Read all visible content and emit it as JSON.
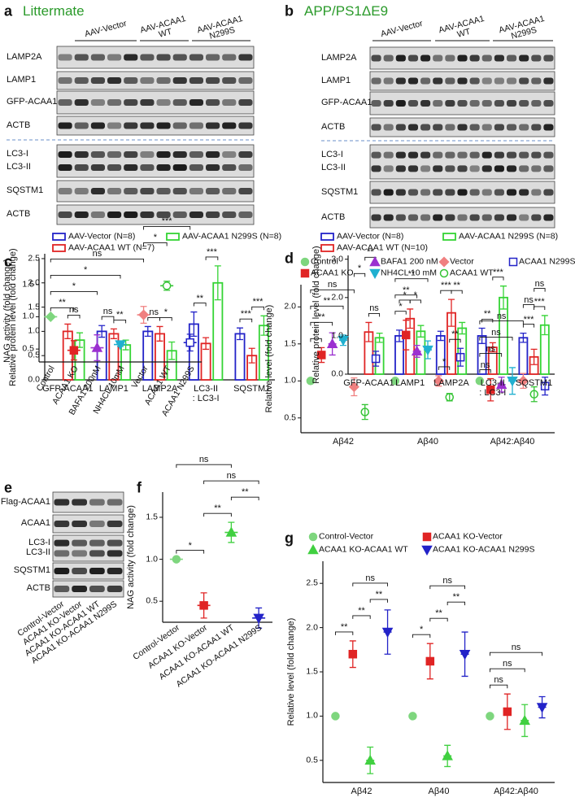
{
  "blots": [
    {
      "letter": "a",
      "title": "Littermate",
      "groups": [
        "AAV-Vector",
        "AAV-ACAA1\nWT",
        "AAV-ACAA1\nN299S"
      ],
      "rows": [
        [
          "LAMP2A"
        ],
        [
          "LAMP1"
        ],
        [
          "GFP-ACAA1"
        ],
        [
          "ACTB"
        ],
        [
          "LC3-I",
          "LC3-II"
        ],
        [
          "SQSTM1"
        ],
        [
          "ACTB"
        ]
      ]
    },
    {
      "letter": "b",
      "title": "APP/PS1ΔE9",
      "groups": [
        "AAV-Vector",
        "AAV-ACAA1\nWT",
        "AAV-ACAA1\nN299S"
      ],
      "rows": [
        [
          "LAMP2A"
        ],
        [
          "LAMP1"
        ],
        [
          "GFP-ACAA1"
        ],
        [
          "ACTB"
        ],
        [
          "LC3-I",
          "LC3-II"
        ],
        [
          "SQSTM1"
        ],
        [
          "ACTB"
        ]
      ]
    },
    {
      "letter": "e",
      "rows": [
        [
          "Flag-ACAA1"
        ],
        [
          "ACAA1"
        ],
        [
          "LC3-I",
          "LC3-II"
        ],
        [
          "SQSTM1"
        ],
        [
          "ACTB"
        ]
      ],
      "lanes": [
        "Control-Vector",
        "ACAA1 KO-Vector",
        "ACAA1 KO-ACAA1 WT",
        "ACAA1 KO-ACAA1 N299S"
      ]
    }
  ],
  "chart_data": [
    {
      "type": "bar",
      "ylabel": "Relative protein level (fold change)",
      "categories": [
        "GFP-ACAA1",
        "LAMP1",
        "LAMP2A",
        "LC3-II\n: LC3-I",
        "SQSTM1"
      ],
      "series": [
        {
          "name": "AAV-Vector (N=8)",
          "color": "#2323c8",
          "values": [
            null,
            1.0,
            1.0,
            1.15,
            0.95
          ],
          "errors": [
            null,
            0.12,
            0.1,
            0.25,
            0.12
          ],
          "significance": [
            null,
            "ns",
            "ns",
            "**",
            "***"
          ]
        },
        {
          "name": "AAV-ACAA1 WT (N=7)",
          "color": "#e02424",
          "values": [
            1.0,
            0.95,
            0.95,
            0.75,
            0.5
          ],
          "errors": [
            0.15,
            0.1,
            0.15,
            0.12,
            0.15
          ]
        },
        {
          "name": "AAV-ACAA1 N299S (N=8)",
          "color": "#35d435",
          "values": [
            0.82,
            0.72,
            0.6,
            2.0,
            1.12
          ],
          "errors": [
            0.15,
            0.1,
            0.18,
            0.35,
            0.2
          ],
          "significance": [
            "ns",
            "**",
            "*",
            "***",
            "***"
          ]
        }
      ],
      "ylim": [
        0,
        2.6
      ],
      "yticks": [
        {
          "value": 0,
          "label": "0.0"
        },
        0.5,
        {
          "value": 1,
          "label": "1.0"
        },
        1.5,
        {
          "value": 2,
          "label": "2.0"
        },
        2.5
      ]
    },
    {
      "type": "bar",
      "ylabel": "Relative protein level (fold change)",
      "categories": [
        "GFP-ACAA1",
        "LAMP1",
        "LAMP2A",
        "LC3-II\n: LC3-I",
        "SQSTM1"
      ],
      "series": [
        {
          "name": "AAV-Vector (N=8)",
          "color": "#2323c8",
          "values": [
            null,
            1.0,
            1.0,
            1.0,
            0.95
          ],
          "errors": [
            null,
            0.15,
            0.12,
            0.2,
            0.12
          ],
          "significance": [
            null,
            "*",
            "***",
            "**",
            "***"
          ]
        },
        {
          "name": "AAV-ACAA1 WT (N=10)",
          "color": "#e02424",
          "values": [
            1.1,
            1.45,
            1.6,
            0.7,
            0.45
          ],
          "errors": [
            0.25,
            0.25,
            0.35,
            0.12,
            0.2
          ]
        },
        {
          "name": "AAV-ACAA1 N299S (N=8)",
          "color": "#35d435",
          "values": [
            0.95,
            1.12,
            1.2,
            2.0,
            1.28
          ],
          "errors": [
            0.12,
            0.15,
            0.15,
            0.3,
            0.25
          ],
          "significance": [
            "ns",
            "*",
            "**",
            "***",
            "***"
          ]
        }
      ],
      "ylim": [
        0,
        3.1
      ],
      "yticks": [
        {
          "value": 0,
          "label": "0.0"
        },
        {
          "value": 1,
          "label": "1.0"
        },
        {
          "value": 2,
          "label": "2.0"
        },
        {
          "value": 3,
          "label": "3.0"
        }
      ]
    },
    {
      "type": "dot",
      "letter": "c",
      "ylabel": "NAG activity (fold change)",
      "categories": [
        "Control",
        "ACAA1 KO",
        "BAFA1 200nM",
        "NH4CL 10mM",
        "Vector",
        "ACAA1 WT",
        "ACAA1 N299S"
      ],
      "values": [
        1.0,
        0.48,
        0.52,
        0.57,
        1.03,
        1.48,
        0.6
      ],
      "errors": [
        0,
        0.15,
        0.2,
        0.03,
        0.13,
        0.07,
        0.13
      ],
      "colors": [
        "#7ed67e",
        "#e02424",
        "#9b30d0",
        "#20b0d0",
        "#f08080",
        "#35c435",
        "#2323c8"
      ],
      "markers": [
        "diamond",
        "square",
        "triangle",
        "triangle-down",
        "diamond",
        "circle-open",
        "square-open"
      ],
      "comparisons": [
        {
          "from": 0,
          "to": 1,
          "label": "**"
        },
        {
          "from": 0,
          "to": 2,
          "label": "*"
        },
        {
          "from": 0,
          "to": 3,
          "label": "*"
        },
        {
          "from": 0,
          "to": 4,
          "label": "ns"
        },
        {
          "from": 4,
          "to": 5,
          "label": "*"
        },
        {
          "from": 4,
          "to": 6,
          "label": "***"
        }
      ],
      "ylim": [
        0.3,
        1.9
      ],
      "yticks": [
        0.5,
        {
          "value": 1,
          "label": "1.0"
        },
        1.5
      ]
    },
    {
      "type": "grouped-dot",
      "letter": "d",
      "ylabel": "Relative level (fold change)",
      "categories": [
        "Aβ42",
        "Aβ40",
        "Aβ42:Aβ40"
      ],
      "series": [
        {
          "name": "Control",
          "color": "#7ed67e",
          "marker": "circle",
          "values": [
            1.0,
            1.0,
            1.0
          ],
          "errors": [
            0,
            0,
            0
          ]
        },
        {
          "name": "ACAA1 KO",
          "color": "#e02424",
          "marker": "square",
          "values": [
            1.35,
            1.62,
            0.88
          ],
          "errors": [
            0.1,
            0.2,
            0.15
          ]
        },
        {
          "name": "BAFA1 200 nM",
          "color": "#9b30d0",
          "marker": "triangle",
          "values": [
            1.5,
            1.4,
            0.95
          ],
          "errors": [
            0.15,
            0.08,
            0.1
          ]
        },
        {
          "name": "NH4CL 10 mM",
          "color": "#20b0d0",
          "marker": "triangle-down",
          "values": [
            1.55,
            1.42,
            1.0
          ],
          "errors": [
            0.07,
            0.12,
            0.18
          ]
        },
        {
          "name": "Vector",
          "color": "#f08080",
          "marker": "diamond",
          "values": [
            0.92,
            1.0,
            1.0
          ],
          "errors": [
            0.12,
            0.07,
            0.1
          ]
        },
        {
          "name": "ACAA1 WT",
          "color": "#35c435",
          "marker": "circle-open",
          "values": [
            0.58,
            0.78,
            0.82
          ],
          "errors": [
            0.1,
            0.05,
            0.1
          ]
        },
        {
          "name": "ACAA1 N299S",
          "color": "#2323c8",
          "marker": "square-open",
          "values": [
            1.3,
            1.32,
            0.93
          ],
          "errors": [
            0.1,
            0.12,
            0.12
          ]
        }
      ],
      "comparisons": [
        {
          "category": 0,
          "from": 0,
          "to": 1,
          "label": "*"
        },
        {
          "category": 0,
          "from": 0,
          "to": 2,
          "label": "**"
        },
        {
          "category": 0,
          "from": 0,
          "to": 3,
          "label": "**"
        },
        {
          "category": 0,
          "from": 0,
          "to": 4,
          "label": "ns"
        },
        {
          "category": 0,
          "from": 4,
          "to": 5,
          "label": "*"
        },
        {
          "category": 0,
          "from": 5,
          "to": 6,
          "label": "**"
        },
        {
          "category": 1,
          "from": 0,
          "to": 1,
          "label": "*"
        },
        {
          "category": 1,
          "from": 0,
          "to": 2,
          "label": "**"
        },
        {
          "category": 1,
          "from": 0,
          "to": 3,
          "label": "**"
        },
        {
          "category": 1,
          "from": 4,
          "to": 5,
          "label": "*"
        },
        {
          "category": 1,
          "from": 5,
          "to": 6,
          "label": "**"
        },
        {
          "category": 2,
          "from": 0,
          "to": 1,
          "label": "ns"
        },
        {
          "category": 2,
          "from": 0,
          "to": 2,
          "label": "ns"
        },
        {
          "category": 2,
          "from": 0,
          "to": 3,
          "label": "ns"
        },
        {
          "category": 2,
          "from": 0,
          "to": 4,
          "label": "ns"
        },
        {
          "category": 2,
          "from": 4,
          "to": 5,
          "label": "ns"
        },
        {
          "category": 2,
          "from": 5,
          "to": 6,
          "label": "ns"
        }
      ],
      "ylim": [
        0.3,
        2.3
      ],
      "yticks": [
        0.5,
        {
          "value": 1,
          "label": "1.0"
        },
        1.5,
        {
          "value": 2,
          "label": "2.0"
        }
      ]
    },
    {
      "type": "dot",
      "letter": "f",
      "ylabel": "NAG activity (fold change)",
      "categories": [
        "Control-Vector",
        "ACAA1 KO-Vector",
        "ACAA1 KO-ACAA1 WT",
        "ACAA1 KO-ACAA1 N299S"
      ],
      "values": [
        1.0,
        0.45,
        1.32,
        0.3
      ],
      "errors": [
        0,
        0.15,
        0.12,
        0.12
      ],
      "colors": [
        "#7ed67e",
        "#e02424",
        "#40d040",
        "#2323c8"
      ],
      "markers": [
        "circle",
        "square",
        "triangle",
        "triangle-down"
      ],
      "comparisons": [
        {
          "from": 0,
          "to": 1,
          "label": "*"
        },
        {
          "from": 1,
          "to": 2,
          "label": "**"
        },
        {
          "from": 2,
          "to": 3,
          "label": "**"
        },
        {
          "from": 1,
          "to": 3,
          "label": "ns"
        },
        {
          "from": 0,
          "to": 2,
          "label": "ns"
        }
      ],
      "ylim": [
        0.25,
        1.8
      ],
      "yticks": [
        0.5,
        {
          "value": 1,
          "label": "1.0"
        },
        1.5
      ]
    },
    {
      "type": "grouped-dot",
      "letter": "g",
      "ylabel": "Relative level (fold change)",
      "categories": [
        "Aβ42",
        "Aβ40",
        "Aβ42:Aβ40"
      ],
      "series": [
        {
          "name": "Control-Vector",
          "color": "#7ed67e",
          "marker": "circle",
          "values": [
            1.0,
            1.0,
            1.0
          ],
          "errors": [
            0,
            0,
            0
          ]
        },
        {
          "name": "ACAA1 KO-Vector",
          "color": "#e02424",
          "marker": "square",
          "values": [
            1.7,
            1.62,
            1.05
          ],
          "errors": [
            0.15,
            0.2,
            0.2
          ]
        },
        {
          "name": "ACAA1 KO-ACAA1 WT",
          "color": "#40d040",
          "marker": "triangle",
          "values": [
            0.5,
            0.55,
            0.95
          ],
          "errors": [
            0.15,
            0.12,
            0.18
          ]
        },
        {
          "name": "ACAA1 KO-ACAA1 N299S",
          "color": "#2323c8",
          "marker": "triangle-down",
          "values": [
            1.95,
            1.7,
            1.1
          ],
          "errors": [
            0.25,
            0.25,
            0.12
          ]
        }
      ],
      "comparisons": [
        {
          "category": 0,
          "from": 0,
          "to": 1,
          "label": "**"
        },
        {
          "category": 0,
          "from": 1,
          "to": 2,
          "label": "**"
        },
        {
          "category": 0,
          "from": 2,
          "to": 3,
          "label": "**"
        },
        {
          "category": 0,
          "from": 1,
          "to": 3,
          "label": "ns"
        },
        {
          "category": 1,
          "from": 0,
          "to": 1,
          "label": "*"
        },
        {
          "category": 1,
          "from": 1,
          "to": 2,
          "label": "**"
        },
        {
          "category": 1,
          "from": 2,
          "to": 3,
          "label": "**"
        },
        {
          "category": 1,
          "from": 1,
          "to": 3,
          "label": "ns"
        },
        {
          "category": 2,
          "from": 0,
          "to": 1,
          "label": "ns"
        },
        {
          "category": 2,
          "from": 0,
          "to": 2,
          "label": "ns"
        },
        {
          "category": 2,
          "from": 0,
          "to": 3,
          "label": "ns"
        }
      ],
      "ylim": [
        0.25,
        2.75
      ],
      "yticks": [
        0.5,
        {
          "value": 1,
          "label": "1.0"
        },
        1.5,
        {
          "value": 2,
          "label": "2.0"
        },
        2.5
      ]
    }
  ]
}
